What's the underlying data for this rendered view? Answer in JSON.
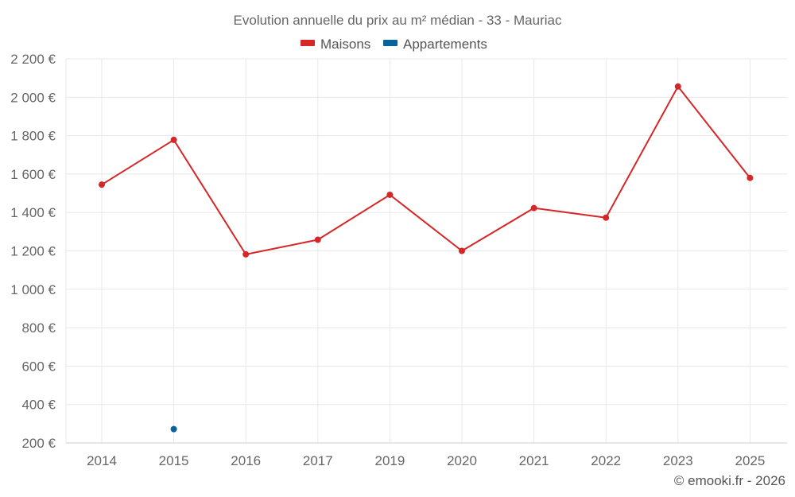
{
  "chart_data": {
    "type": "line",
    "title": "Evolution annuelle du prix au m² médian - 33 - Mauriac",
    "categories": [
      "2014",
      "2015",
      "2016",
      "2017",
      "2019",
      "2020",
      "2021",
      "2022",
      "2023",
      "2025"
    ],
    "series": [
      {
        "name": "Maisons",
        "color": "#d62728",
        "values": [
          1545,
          1778,
          1182,
          1258,
          1492,
          1200,
          1423,
          1373,
          2056,
          1580
        ]
      },
      {
        "name": "Appartements",
        "color": "#08629c",
        "values": [
          null,
          272,
          null,
          null,
          null,
          null,
          null,
          null,
          null,
          null
        ]
      }
    ],
    "y_ticks": [
      "200 €",
      "400 €",
      "600 €",
      "800 €",
      "1 000 €",
      "1 200 €",
      "1 400 €",
      "1 600 €",
      "1 800 €",
      "2 000 €",
      "2 200 €"
    ],
    "ylim": [
      200,
      2200
    ],
    "grid": true,
    "legend_position": "top-center",
    "credit": "© emooki.fr - 2026"
  }
}
